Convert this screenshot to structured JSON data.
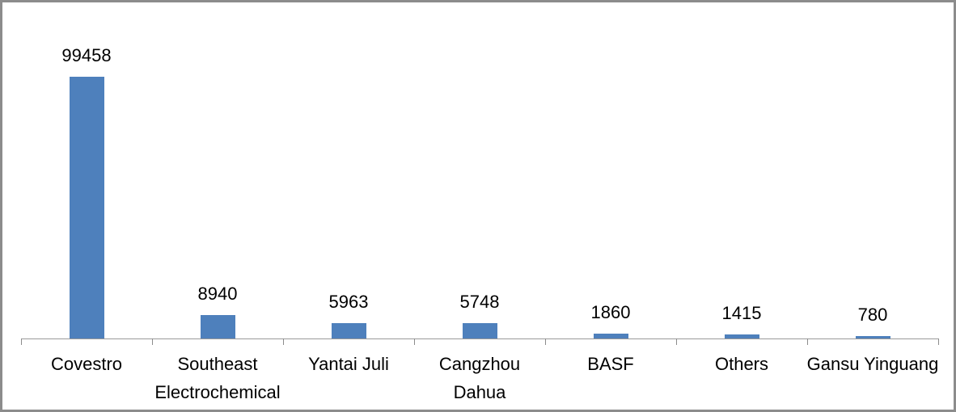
{
  "window": {
    "background_color": "#FFFFFF",
    "frame_border_color": "#8C8C8C"
  },
  "chart_data": {
    "type": "bar",
    "title": "",
    "xlabel": "",
    "ylabel": "",
    "ylim": [
      0,
      100000
    ],
    "grid": false,
    "legend": "none",
    "y_axis_visible": false,
    "bar_color": "#4E80BC",
    "axis_color": "#8C8C8C",
    "label_color": "#000000",
    "categories": [
      "Covestro",
      "Southeast Electrochemical",
      "Yantai Juli",
      "Cangzhou Dahua",
      "BASF",
      "Others",
      "Gansu Yinguang"
    ],
    "category_label_lines": [
      [
        "Covestro"
      ],
      [
        "Southeast",
        "Electrochemical"
      ],
      [
        "Yantai Juli"
      ],
      [
        "Cangzhou",
        "Dahua"
      ],
      [
        "BASF"
      ],
      [
        "Others"
      ],
      [
        "Gansu Yinguang"
      ]
    ],
    "values": [
      99458,
      8940,
      5963,
      5748,
      1860,
      1415,
      780
    ],
    "data_labels": [
      "99458",
      "8940",
      "5963",
      "5748",
      "1860",
      "1415",
      "780"
    ]
  }
}
